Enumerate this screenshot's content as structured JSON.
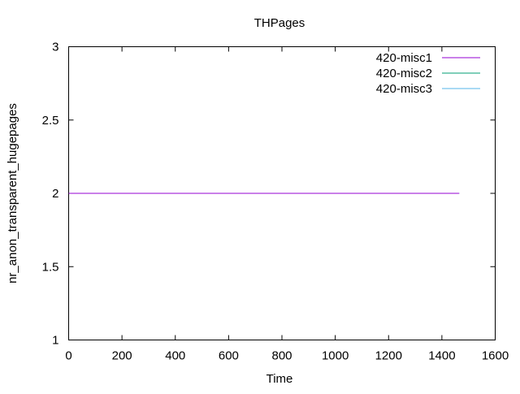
{
  "chart_data": {
    "type": "line",
    "title": "THPages",
    "xlabel": "Time",
    "ylabel": "nr_anon_transparent_hugepages",
    "xlim": [
      0,
      1600
    ],
    "ylim": [
      1,
      3
    ],
    "xticks": [
      0,
      200,
      400,
      600,
      800,
      1000,
      1200,
      1400,
      1600
    ],
    "yticks": [
      1,
      1.5,
      2,
      2.5,
      3
    ],
    "legend_position": "top-right",
    "grid": false,
    "series": [
      {
        "name": "420-misc1",
        "color": "#9400d3",
        "x": [
          0,
          1465
        ],
        "y": [
          2,
          2
        ]
      },
      {
        "name": "420-misc2",
        "color": "#009e73",
        "x": [
          0,
          1465
        ],
        "y": [
          2,
          2
        ]
      },
      {
        "name": "420-misc3",
        "color": "#56b4e9",
        "x": [
          0,
          1465
        ],
        "y": [
          2,
          2
        ]
      }
    ]
  }
}
